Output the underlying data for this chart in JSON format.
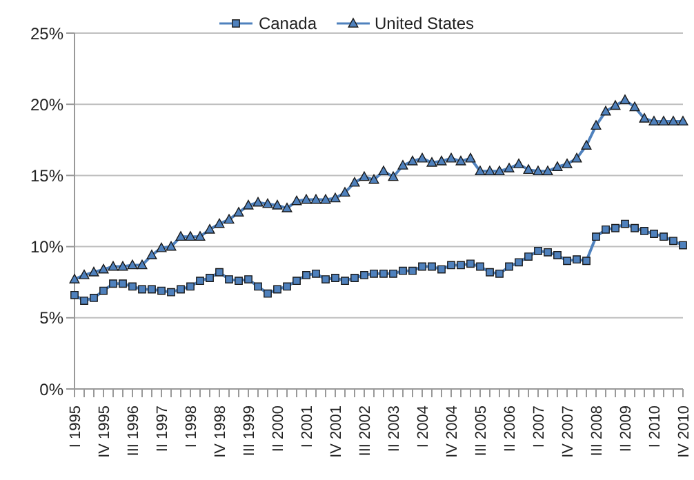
{
  "chart_data": {
    "type": "line",
    "categories": [
      "I 1995",
      null,
      null,
      "IV 1995",
      null,
      null,
      "III 1996",
      null,
      null,
      "II 1997",
      null,
      null,
      "I 1998",
      null,
      null,
      "IV 1998",
      null,
      null,
      "III 1999",
      null,
      null,
      "II 2000",
      null,
      null,
      "I 2001",
      null,
      null,
      "IV 2001",
      null,
      null,
      "III 2002",
      null,
      null,
      "II 2003",
      null,
      null,
      "I 2004",
      null,
      null,
      "IV 2004",
      null,
      null,
      "III 2005",
      null,
      null,
      "II 2006",
      null,
      null,
      "I 2007",
      null,
      null,
      "IV 2007",
      null,
      null,
      "III 2008",
      null,
      null,
      "II 2009",
      null,
      null,
      "I 2010",
      null,
      null,
      "IV 2010"
    ],
    "series": [
      {
        "name": "Canada",
        "color": "#4f81bd",
        "values": [
          6.6,
          6.2,
          6.4,
          6.9,
          7.4,
          7.4,
          7.2,
          7.0,
          7.0,
          6.9,
          6.8,
          7.0,
          7.2,
          7.6,
          7.8,
          8.2,
          7.7,
          7.6,
          7.7,
          7.2,
          6.7,
          7.0,
          7.2,
          7.6,
          8.0,
          8.1,
          7.7,
          7.8,
          7.6,
          7.8,
          8.0,
          8.1,
          8.1,
          8.1,
          8.3,
          8.3,
          8.6,
          8.6,
          8.4,
          8.7,
          8.7,
          8.8,
          8.6,
          8.2,
          8.1,
          8.6,
          8.9,
          9.3,
          9.7,
          9.6,
          9.4,
          9.0,
          9.1,
          9.0,
          10.7,
          11.2,
          11.3,
          11.6,
          11.3,
          11.1,
          10.9,
          10.7,
          10.4,
          10.1
        ]
      },
      {
        "name": "United States",
        "color": "#4f81bd",
        "marker": "triangle",
        "values": [
          7.7,
          8.0,
          8.2,
          8.4,
          8.6,
          8.6,
          8.7,
          8.7,
          9.4,
          9.9,
          10.0,
          10.7,
          10.7,
          10.7,
          11.2,
          11.6,
          11.9,
          12.4,
          12.9,
          13.1,
          13.0,
          12.9,
          12.7,
          13.2,
          13.3,
          13.3,
          13.3,
          13.4,
          13.8,
          14.5,
          14.9,
          14.7,
          15.3,
          14.9,
          15.7,
          16.0,
          16.2,
          15.9,
          16.0,
          16.2,
          16.0,
          16.2,
          15.3,
          15.3,
          15.3,
          15.5,
          15.8,
          15.4,
          15.3,
          15.3,
          15.6,
          15.8,
          16.2,
          17.1,
          18.5,
          19.5,
          19.9,
          20.3,
          19.8,
          19.0,
          18.8,
          18.8,
          18.8,
          18.8
        ]
      }
    ],
    "ylim": [
      0,
      25
    ],
    "yticks": [
      {
        "value": 0,
        "label": "0%"
      },
      {
        "value": 5,
        "label": "5%"
      },
      {
        "value": 10,
        "label": "10%"
      },
      {
        "value": 15,
        "label": "15%"
      },
      {
        "value": 20,
        "label": "20%"
      },
      {
        "value": 25,
        "label": "25%"
      }
    ],
    "grid": "y",
    "legend": "top",
    "line_style": "solid",
    "marker": "square"
  }
}
